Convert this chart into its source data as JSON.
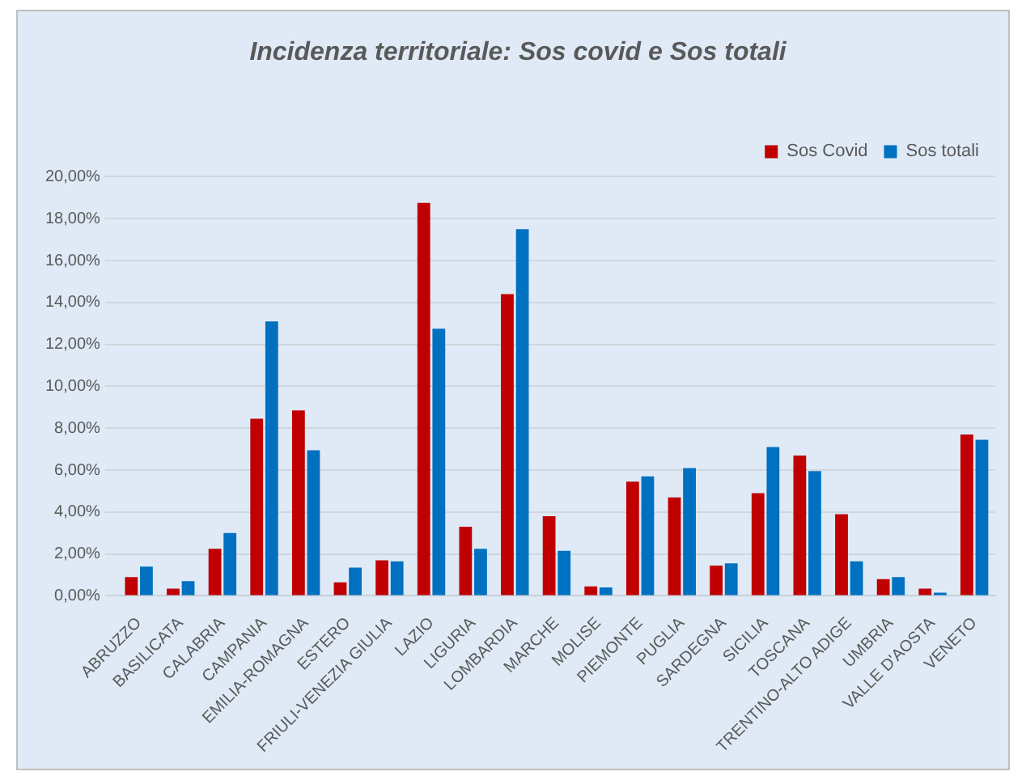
{
  "chart_data": {
    "type": "bar",
    "title": "Incidenza territoriale: Sos covid e Sos totali",
    "categories": [
      "ABRUZZO",
      "BASILICATA",
      "CALABRIA",
      "CAMPANIA",
      "EMILIA-ROMAGNA",
      "ESTERO",
      "FRIULI-VENEZIA GIULIA",
      "LAZIO",
      "LIGURIA",
      "LOMBARDIA",
      "MARCHE",
      "MOLISE",
      "PIEMONTE",
      "PUGLIA",
      "SARDEGNA",
      "SICILIA",
      "TOSCANA",
      "TRENTINO-ALTO ADIGE",
      "UMBRIA",
      "VALLE D'AOSTA",
      "VENETO"
    ],
    "series": [
      {
        "name": "Sos Covid",
        "color": "#c00000",
        "values": [
          0.9,
          0.35,
          2.25,
          8.45,
          8.85,
          0.65,
          1.7,
          18.75,
          3.3,
          14.4,
          3.8,
          0.45,
          5.45,
          4.7,
          1.45,
          4.9,
          6.7,
          3.9,
          0.8,
          0.35,
          7.7
        ]
      },
      {
        "name": "Sos totali",
        "color": "#0070c0",
        "values": [
          1.4,
          0.7,
          3.0,
          13.1,
          6.95,
          1.35,
          1.65,
          12.75,
          2.25,
          17.5,
          2.15,
          0.4,
          5.7,
          6.1,
          1.55,
          7.1,
          5.95,
          1.65,
          0.9,
          0.15,
          7.45
        ]
      }
    ],
    "ylim": [
      0,
      20
    ],
    "yticks": [
      {
        "value": 0,
        "label": "0,00%"
      },
      {
        "value": 2,
        "label": "2,00%"
      },
      {
        "value": 4,
        "label": "4,00%"
      },
      {
        "value": 6,
        "label": "6,00%"
      },
      {
        "value": 8,
        "label": "8,00%"
      },
      {
        "value": 10,
        "label": "10,00%"
      },
      {
        "value": 12,
        "label": "12,00%"
      },
      {
        "value": 14,
        "label": "14,00%"
      },
      {
        "value": 16,
        "label": "16,00%"
      },
      {
        "value": 18,
        "label": "18,00%"
      },
      {
        "value": 20,
        "label": "20,00%"
      }
    ],
    "grid": "y",
    "legend": "top right"
  }
}
